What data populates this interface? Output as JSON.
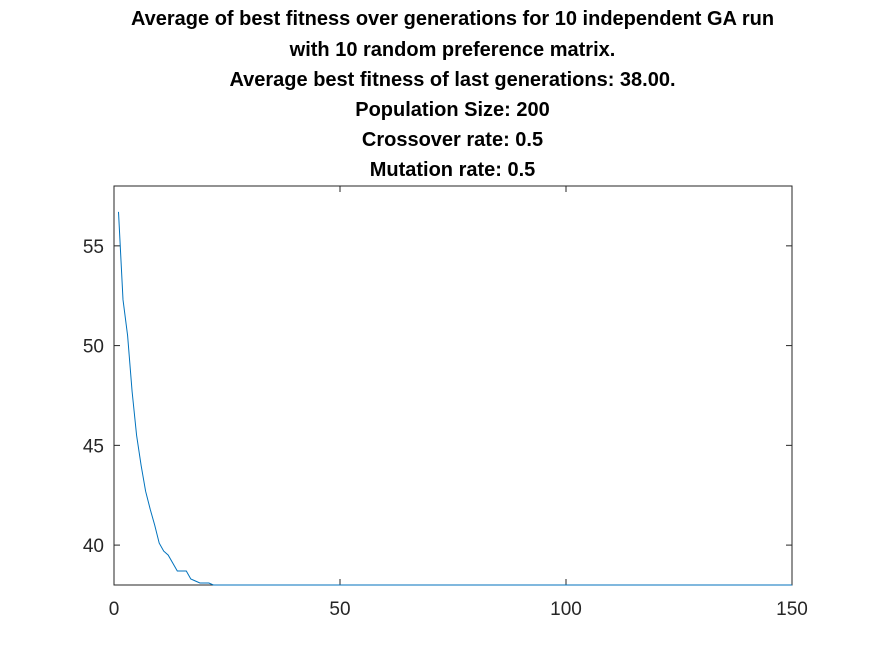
{
  "chart_data": {
    "type": "line",
    "title_lines": [
      "Average of best fitness over generations for 10 independent GA run",
      "with 10 random preference matrix.",
      "Average best fitness of last generations: 38.00.",
      "Population Size: 200",
      "Crossover rate: 0.5",
      "Mutation rate: 0.5"
    ],
    "xlabel": "",
    "ylabel": "",
    "xlim": [
      0,
      150
    ],
    "ylim": [
      38,
      58
    ],
    "xticks": [
      0,
      50,
      100,
      150
    ],
    "yticks": [
      40,
      45,
      50,
      55
    ],
    "grid": false,
    "line_color": "#0072BD",
    "series": [
      {
        "x": [
          1,
          2,
          3,
          4,
          5,
          6,
          7,
          8,
          9,
          10,
          11,
          12,
          13,
          14,
          15,
          16,
          17,
          18,
          19,
          20,
          21,
          22,
          23,
          25,
          30,
          40,
          60,
          80,
          100,
          120,
          150
        ],
        "values": [
          56.7,
          52.3,
          50.5,
          47.7,
          45.5,
          44.0,
          42.7,
          41.8,
          41.0,
          40.1,
          39.7,
          39.5,
          39.1,
          38.7,
          38.7,
          38.7,
          38.3,
          38.2,
          38.1,
          38.1,
          38.1,
          38.0,
          38.0,
          38.0,
          38.0,
          38.0,
          38.0,
          38.0,
          38.0,
          38.0,
          38.0
        ]
      }
    ]
  }
}
